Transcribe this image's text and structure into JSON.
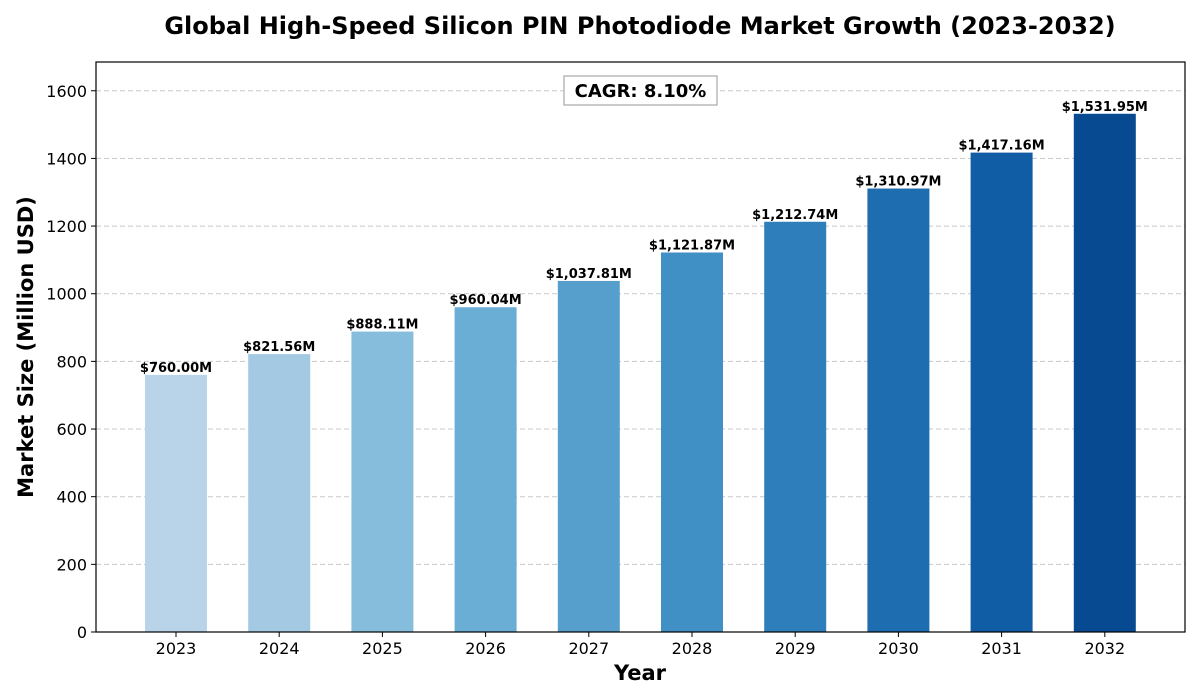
{
  "chart_data": {
    "type": "bar",
    "title": "Global High-Speed Silicon PIN Photodiode Market Growth (2023-2032)",
    "xlabel": "Year",
    "ylabel": "Market Size (Million USD)",
    "categories": [
      "2023",
      "2024",
      "2025",
      "2026",
      "2027",
      "2028",
      "2029",
      "2030",
      "2031",
      "2032"
    ],
    "values": [
      760.0,
      821.56,
      888.11,
      960.04,
      1037.81,
      1121.87,
      1212.74,
      1310.97,
      1417.16,
      1531.95
    ],
    "value_labels": [
      "$760.00M",
      "$821.56M",
      "$888.11M",
      "$960.04M",
      "$1,037.81M",
      "$1,121.87M",
      "$1,212.74M",
      "$1,310.97M",
      "$1,417.16M",
      "$1,531.95M"
    ],
    "bar_colors": [
      "#b9d4e9",
      "#a3cae2",
      "#87bddc",
      "#6aadd5",
      "#569fcc",
      "#408fc5",
      "#2e7ebb",
      "#1f6db1",
      "#115da5",
      "#084a91"
    ],
    "ylim": [
      0,
      1685
    ],
    "yticks": [
      0,
      200,
      400,
      600,
      800,
      1000,
      1200,
      1400,
      1600
    ],
    "grid": true,
    "annotation": "CAGR: 8.10%"
  }
}
